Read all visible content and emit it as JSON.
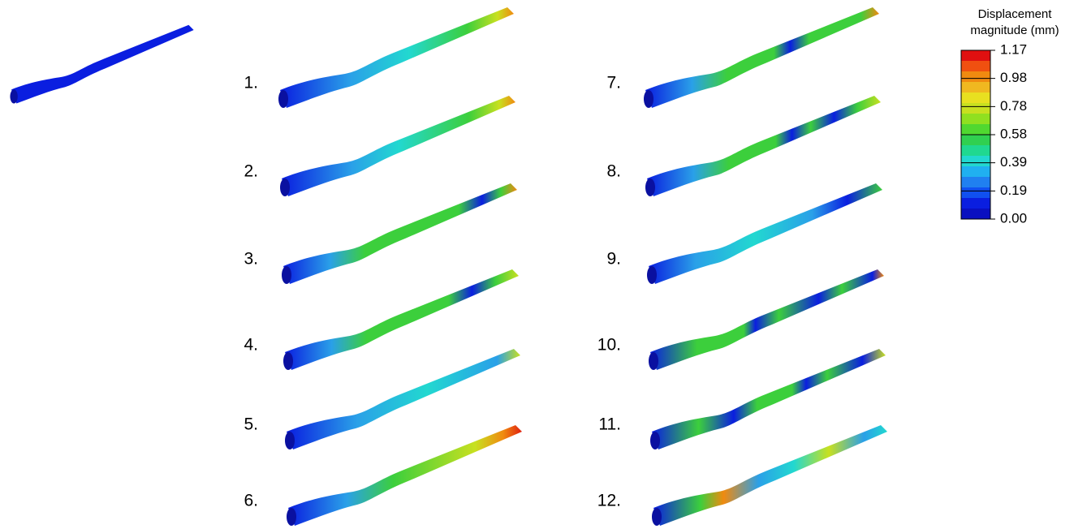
{
  "modes": [
    "1.",
    "2.",
    "3.",
    "4.",
    "5.",
    "6.",
    "7.",
    "8.",
    "9.",
    "10.",
    "11.",
    "12."
  ],
  "colorbar": {
    "title": [
      "Displacement",
      "magnitude (mm)"
    ],
    "ticks": [
      "1.17",
      "0.98",
      "0.78",
      "0.58",
      "0.39",
      "0.19",
      "0.00"
    ]
  }
}
